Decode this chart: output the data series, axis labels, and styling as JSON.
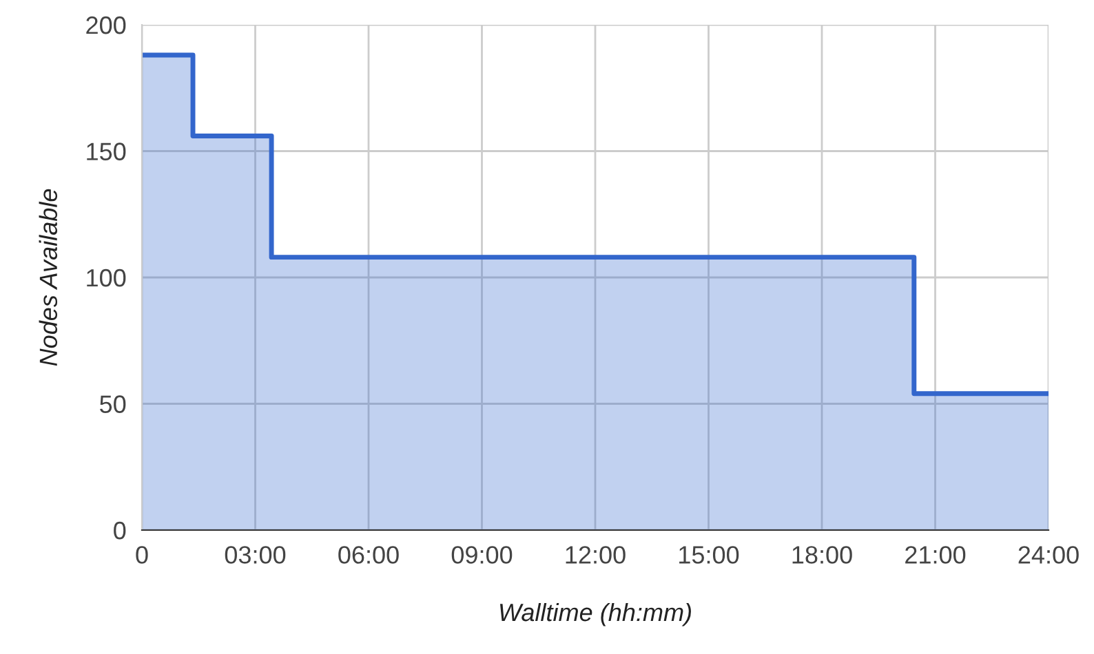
{
  "chart_data": {
    "type": "area",
    "xlabel": "Walltime (hh:mm)",
    "ylabel": "Nodes Available",
    "series": [
      {
        "color": "#3366cc",
        "x": [
          0,
          1.35,
          1.35,
          3.43,
          3.43,
          20.44,
          20.44,
          24
        ],
        "values": [
          188,
          188,
          156,
          156,
          108,
          108,
          54,
          54
        ]
      }
    ],
    "xlim": [
      0,
      24
    ],
    "xticks": [
      0,
      {
        "value": 3,
        "label": "03:00"
      },
      {
        "value": 6,
        "label": "06:00"
      },
      {
        "value": 9,
        "label": "09:00"
      },
      {
        "value": 12,
        "label": "12:00"
      },
      {
        "value": 15,
        "label": "15:00"
      },
      {
        "value": 18,
        "label": "18:00"
      },
      {
        "value": 21,
        "label": "21:00"
      },
      {
        "value": 24,
        "label": "24:00"
      }
    ],
    "ylim": [
      0,
      200
    ],
    "yticks": [
      0,
      50,
      100,
      150,
      200
    ],
    "grid": true,
    "marker": "none",
    "line_style": "solid"
  }
}
